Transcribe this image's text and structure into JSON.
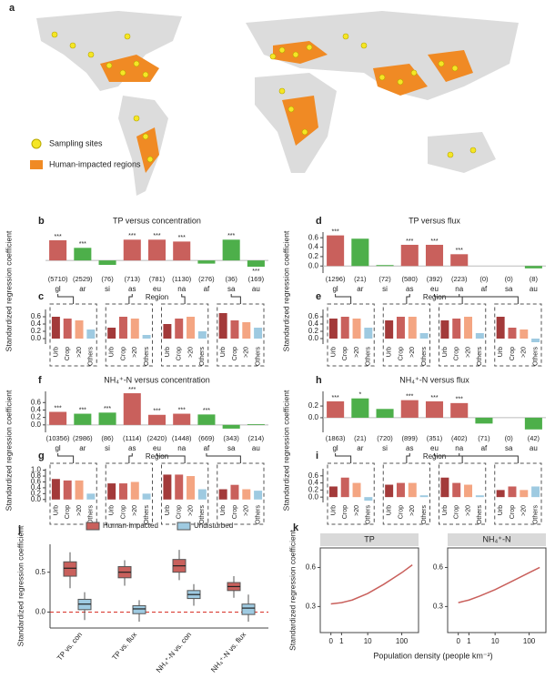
{
  "map": {
    "panel": "a",
    "legend": [
      "Sampling sites",
      "Human-impacted regions"
    ]
  },
  "chart_data": [
    {
      "type": "bar",
      "panel": "b",
      "title": "TP versus concentration",
      "ylabel": "Standardized regression coefficient",
      "xlabel": "Region",
      "categories": [
        "gl",
        "ar",
        "si",
        "as",
        "eu",
        "na",
        "af",
        "sa",
        "au"
      ],
      "values": [
        0.32,
        0.2,
        -0.07,
        0.33,
        0.33,
        0.3,
        -0.05,
        0.33,
        -0.1
      ],
      "colors": [
        "#c9605c",
        "#4daf4a",
        "#4daf4a",
        "#c9605c",
        "#c9605c",
        "#c9605c",
        "#4daf4a",
        "#4daf4a",
        "#4daf4a"
      ],
      "sig": [
        "***",
        "***",
        null,
        "***",
        "***",
        "***",
        null,
        "***",
        "***"
      ],
      "sizes": [
        "(5710)",
        "(2529)",
        "(76)",
        "(713)",
        "(781)",
        "(1130)",
        "(276)",
        "(36)",
        "(169)"
      ],
      "ylim": [
        -0.2,
        0.45
      ]
    },
    {
      "type": "grouped_bar",
      "panel": "c",
      "categories": [
        "Urb",
        "Crop",
        ">20",
        "Others"
      ],
      "values": [
        [
          0.6,
          0.55,
          0.5,
          0.25
        ],
        [
          0.3,
          0.6,
          0.55,
          0.1
        ],
        [
          0.4,
          0.55,
          0.6,
          0.2
        ],
        [
          0.7,
          0.5,
          0.45,
          0.3
        ]
      ],
      "colors": [
        "#a33a3a",
        "#c9605c",
        "#f4a582",
        "#9ecae1"
      ],
      "ylim": [
        -0.15,
        0.8
      ],
      "yticks": [
        {
          "value": 0,
          "label": "0.0"
        },
        0.2,
        0.4,
        0.6
      ]
    },
    {
      "type": "bar",
      "panel": "d",
      "title": "TP versus flux",
      "ylabel": "Standardized regression coefficient",
      "xlabel": "Region",
      "categories": [
        "gl",
        "ar",
        "si",
        "as",
        "eu",
        "na",
        "af",
        "sa",
        "au"
      ],
      "values": [
        0.65,
        0.58,
        0.02,
        0.45,
        0.45,
        0.25,
        0,
        0,
        -0.05
      ],
      "colors": [
        "#c9605c",
        "#4daf4a",
        "#4daf4a",
        "#c9605c",
        "#c9605c",
        "#c9605c",
        "#4daf4a",
        "#4daf4a",
        "#4daf4a"
      ],
      "sig": [
        "***",
        null,
        null,
        "***",
        "***",
        "***",
        null,
        null,
        null
      ],
      "sizes": [
        "(1296)",
        "(21)",
        "(72)",
        "(580)",
        "(392)",
        "(223)",
        "(0)",
        "(0)",
        "(8)"
      ],
      "ylim": [
        -0.15,
        0.72
      ],
      "yticks": [
        {
          "value": 0,
          "label": "0.0"
        },
        0.2,
        0.4,
        0.6
      ]
    },
    {
      "type": "grouped_bar",
      "panel": "e",
      "categories": [
        "Urb",
        "Crop",
        ">20",
        "Others"
      ],
      "values": [
        [
          0.55,
          0.6,
          0.55,
          0.3
        ],
        [
          0.5,
          0.6,
          0.6,
          0.15
        ],
        [
          0.5,
          0.55,
          0.6,
          0.15
        ],
        [
          0.6,
          0.3,
          0.25,
          -0.1
        ]
      ],
      "colors": [
        "#a33a3a",
        "#c9605c",
        "#f4a582",
        "#9ecae1"
      ],
      "ylim": [
        -0.15,
        0.8
      ],
      "yticks": [
        {
          "value": 0,
          "label": "0.0"
        },
        0.2,
        0.4,
        0.6
      ]
    },
    {
      "type": "bar",
      "panel": "f",
      "title": "NH₄⁺-N versus concentration",
      "ylabel": "Standardized regression coefficient",
      "xlabel": "Region",
      "categories": [
        "gl",
        "ar",
        "si",
        "as",
        "eu",
        "na",
        "af",
        "sa",
        "au"
      ],
      "values": [
        0.35,
        0.3,
        0.33,
        0.85,
        0.27,
        0.3,
        0.28,
        -0.1,
        0.02
      ],
      "colors": [
        "#c9605c",
        "#4daf4a",
        "#4daf4a",
        "#c9605c",
        "#c9605c",
        "#c9605c",
        "#4daf4a",
        "#4daf4a",
        "#4daf4a"
      ],
      "sig": [
        "***",
        "***",
        "***",
        "***",
        "***",
        "***",
        "***",
        null,
        null
      ],
      "sizes": [
        "(10356)",
        "(2986)",
        "(86)",
        "(1114)",
        "(2420)",
        "(1448)",
        "(669)",
        "(343)",
        "(214)"
      ],
      "ylim": [
        -0.2,
        0.9
      ],
      "yticks": [
        {
          "value": 0,
          "label": "0.0"
        },
        0.2,
        0.4,
        0.6
      ]
    },
    {
      "type": "grouped_bar",
      "panel": "g",
      "categories": [
        "Urb",
        "Crop",
        ">20",
        "Others"
      ],
      "values": [
        [
          0.7,
          0.65,
          0.65,
          0.2
        ],
        [
          0.55,
          0.55,
          0.6,
          0.2
        ],
        [
          0.85,
          0.85,
          0.8,
          0.35
        ],
        [
          0.35,
          0.5,
          0.35,
          0.3
        ]
      ],
      "colors": [
        "#a33a3a",
        "#c9605c",
        "#f4a582",
        "#9ecae1"
      ],
      "ylim": [
        -0.1,
        1.05
      ],
      "yticks": [
        {
          "value": 0,
          "label": "0.0"
        },
        0.2,
        0.4,
        0.6,
        0.8,
        {
          "value": 1,
          "label": "1.0"
        }
      ]
    },
    {
      "type": "bar",
      "panel": "h",
      "title": "NH₄⁺-N versus flux",
      "ylabel": "Standardized regression coefficient",
      "xlabel": "Region",
      "categories": [
        "gl",
        "ar",
        "si",
        "as",
        "eu",
        "na",
        "af",
        "sa",
        "au"
      ],
      "values": [
        0.28,
        0.33,
        0.15,
        0.3,
        0.28,
        0.25,
        -0.1,
        0,
        -0.2
      ],
      "colors": [
        "#c9605c",
        "#4daf4a",
        "#4daf4a",
        "#c9605c",
        "#c9605c",
        "#c9605c",
        "#4daf4a",
        "#4daf4a",
        "#4daf4a"
      ],
      "sig": [
        "***",
        "*",
        null,
        "***",
        "***",
        "***",
        null,
        null,
        null
      ],
      "sizes": [
        "(1863)",
        "(21)",
        "(720)",
        "(899)",
        "(351)",
        "(402)",
        "(71)",
        "(0)",
        "(42)"
      ],
      "ylim": [
        -0.25,
        0.45
      ],
      "yticks": [
        {
          "value": 0,
          "label": "0.0"
        },
        0.2
      ]
    },
    {
      "type": "grouped_bar",
      "panel": "i",
      "categories": [
        "Urb",
        "Crop",
        ">20",
        "Others"
      ],
      "values": [
        [
          0.3,
          0.55,
          0.4,
          -0.1
        ],
        [
          0.35,
          0.4,
          0.4,
          0.05
        ],
        [
          0.55,
          0.4,
          0.35,
          0.05
        ],
        [
          0.2,
          0.3,
          0.2,
          0.3
        ]
      ],
      "colors": [
        "#a33a3a",
        "#c9605c",
        "#f4a582",
        "#9ecae1"
      ],
      "ylim": [
        -0.15,
        0.8
      ],
      "yticks": [
        {
          "value": 0,
          "label": "0.0"
        },
        0.2,
        0.4,
        0.6
      ]
    },
    {
      "type": "box",
      "panel": "j",
      "ylabel": "Standardized regression coefficient",
      "categories": [
        "TP vs. con",
        "TP vs. flux",
        "NH₄⁺-N vs. con",
        "NH₄⁺-N vs. flux"
      ],
      "series": [
        {
          "name": "Human-impacted",
          "color": "#c9605c",
          "median": [
            0.55,
            0.5,
            0.58,
            0.32
          ],
          "q1": [
            0.45,
            0.43,
            0.5,
            0.27
          ],
          "q3": [
            0.63,
            0.57,
            0.66,
            0.37
          ],
          "low": [
            0.3,
            0.33,
            0.4,
            0.18
          ],
          "high": [
            0.75,
            0.65,
            0.78,
            0.45
          ]
        },
        {
          "name": "Undisturbed",
          "color": "#9ecae1",
          "median": [
            0.1,
            0.04,
            0.22,
            0.05
          ],
          "q1": [
            0.03,
            -0.02,
            0.17,
            -0.03
          ],
          "q3": [
            0.16,
            0.08,
            0.27,
            0.1
          ],
          "low": [
            -0.1,
            -0.12,
            0.08,
            -0.12
          ],
          "high": [
            0.25,
            0.15,
            0.35,
            0.22
          ]
        }
      ],
      "reference_line": 0,
      "ylim": [
        -0.2,
        0.85
      ],
      "yticks": [
        {
          "value": 0,
          "label": "0.0"
        },
        0.5
      ]
    },
    {
      "type": "line",
      "panel": "k",
      "title": "TP",
      "ylabel": "Standardized regression coefficient",
      "xlabel": "Population density (people km⁻²)",
      "x": [
        0,
        1,
        3,
        10,
        30,
        100,
        200
      ],
      "values": [
        0.32,
        0.33,
        0.35,
        0.4,
        0.47,
        0.56,
        0.62
      ],
      "color": "#c9605c",
      "xscale": "log1p",
      "xlim": [
        -0.5,
        300
      ],
      "xticks": [
        0,
        1,
        10,
        100
      ],
      "ylim": [
        0.1,
        0.75
      ],
      "yticks": [
        0.3,
        0.6
      ]
    },
    {
      "type": "line",
      "title": "NH₄⁺-N",
      "x": [
        0,
        1,
        3,
        10,
        30,
        100,
        200
      ],
      "values": [
        0.33,
        0.35,
        0.38,
        0.43,
        0.49,
        0.56,
        0.6
      ],
      "color": "#c9605c",
      "xscale": "log1p",
      "xlim": [
        -0.5,
        300
      ],
      "xticks": [
        0,
        1,
        10,
        100
      ],
      "ylim": [
        0.1,
        0.75
      ],
      "yticks": [
        0.3,
        0.6
      ]
    }
  ]
}
